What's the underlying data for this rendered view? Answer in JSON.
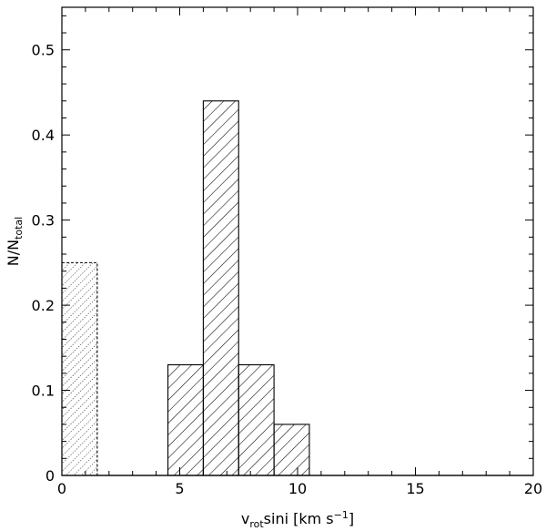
{
  "chart_data": {
    "type": "bar",
    "xlabel": {
      "main": "v",
      "sub": "rot",
      "rest": "sini  [km s",
      "sup": "−1",
      "close": "]"
    },
    "ylabel": {
      "main": "N/N",
      "sub": "total"
    },
    "xlim": [
      0,
      20
    ],
    "ylim": [
      0,
      0.55
    ],
    "xticks": [
      0,
      5,
      10,
      15,
      20
    ],
    "xtick_labels": [
      "0",
      "5",
      "10",
      "15",
      "20"
    ],
    "yticks": [
      0,
      0.1,
      0.2,
      0.3,
      0.4,
      0.5
    ],
    "ytick_labels": [
      "0",
      "0.1",
      "0.2",
      "0.3",
      "0.4",
      "0.5"
    ],
    "grid": false,
    "series": [
      {
        "hatch": "dotted-diagonal",
        "bins": [
          {
            "x0": 0,
            "x1": 1.5,
            "value": 0.25
          }
        ]
      },
      {
        "hatch": "diagonal",
        "bins": [
          {
            "x0": 4.5,
            "x1": 6.0,
            "value": 0.13
          },
          {
            "x0": 6.0,
            "x1": 7.5,
            "value": 0.44
          },
          {
            "x0": 7.5,
            "x1": 9.0,
            "value": 0.13
          },
          {
            "x0": 9.0,
            "x1": 10.5,
            "value": 0.06
          }
        ]
      }
    ]
  }
}
